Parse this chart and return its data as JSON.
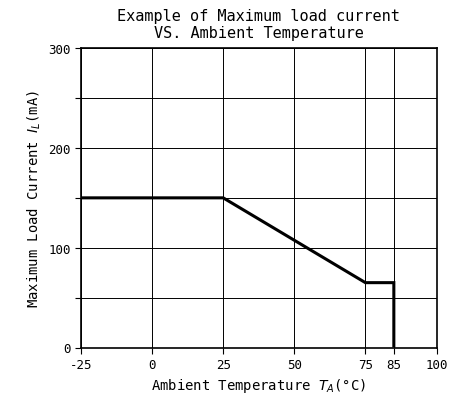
{
  "title_line1": "Example of Maximum load current",
  "title_line2": "VS. Ambient Temperature",
  "xlabel_plain": "Ambient Temperature T",
  "xlabel_sub": "A",
  "xlabel_deg": "(°C)",
  "ylabel_plain": "Maximum Load Current I",
  "ylabel_sub": "L",
  "ylabel_unit": "(mA)",
  "xlim": [
    -25,
    100
  ],
  "ylim": [
    0,
    300
  ],
  "xticks_major": [
    -25,
    0,
    25,
    50,
    75,
    100
  ],
  "xtick_extra": 85,
  "yticks_grid": [
    0,
    50,
    100,
    150,
    200,
    250,
    300
  ],
  "yticks_labels": [
    0,
    100,
    200,
    300
  ],
  "curve_x": [
    -25,
    25,
    75,
    85,
    85
  ],
  "curve_y": [
    150,
    150,
    65,
    65,
    0
  ],
  "line_color": "#000000",
  "line_width": 2.2,
  "bg_color": "#ffffff",
  "grid_color": "#000000",
  "grid_linewidth": 0.7,
  "title_fontsize": 11,
  "label_fontsize": 10,
  "tick_fontsize": 9,
  "font_family": "monospace"
}
